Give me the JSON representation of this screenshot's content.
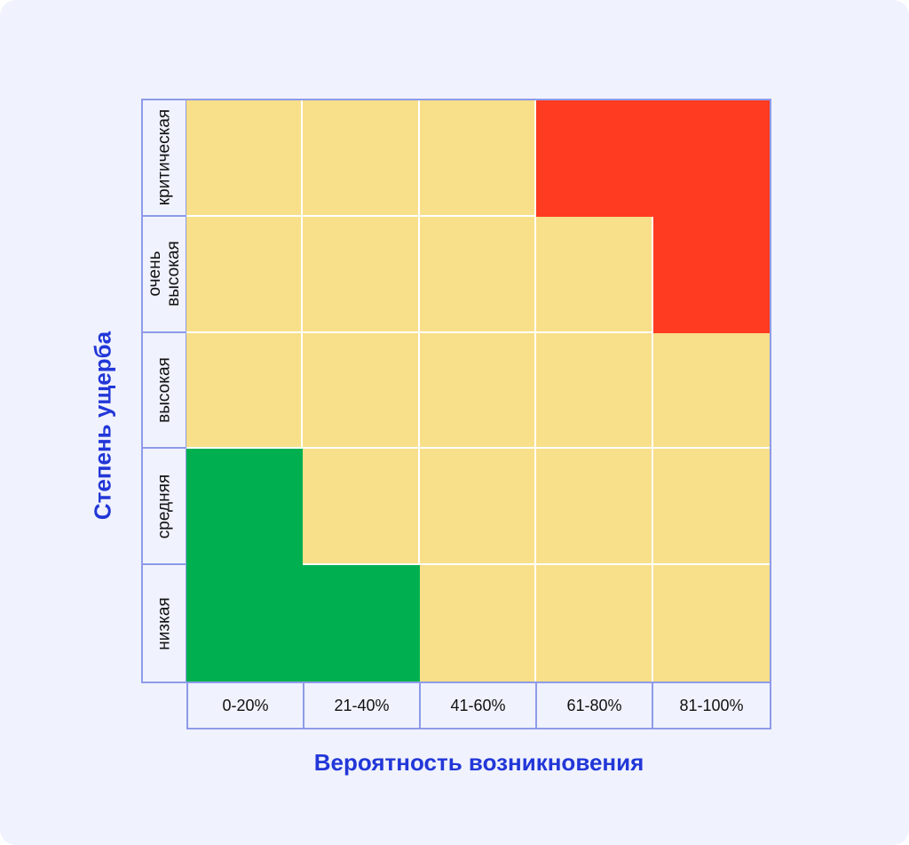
{
  "chart_data": {
    "type": "heatmap",
    "title": "",
    "xlabel": "Вероятность возникновения",
    "ylabel": "Степень ущерба",
    "x_categories": [
      "0-20%",
      "21-40%",
      "41-60%",
      "61-80%",
      "81-100%"
    ],
    "y_categories": [
      "критическая",
      "очень\nвысокая",
      "высокая",
      "средняя",
      "низкая"
    ],
    "levels": {
      "low": "#00b050",
      "medium": "#f8df8a",
      "high": "#ff3b21"
    },
    "cells": [
      [
        "medium",
        "medium",
        "medium",
        "high",
        "high"
      ],
      [
        "medium",
        "medium",
        "medium",
        "medium",
        "high"
      ],
      [
        "medium",
        "medium",
        "medium",
        "medium",
        "medium"
      ],
      [
        "low",
        "medium",
        "medium",
        "medium",
        "medium"
      ],
      [
        "low",
        "low",
        "medium",
        "medium",
        "medium"
      ]
    ]
  }
}
